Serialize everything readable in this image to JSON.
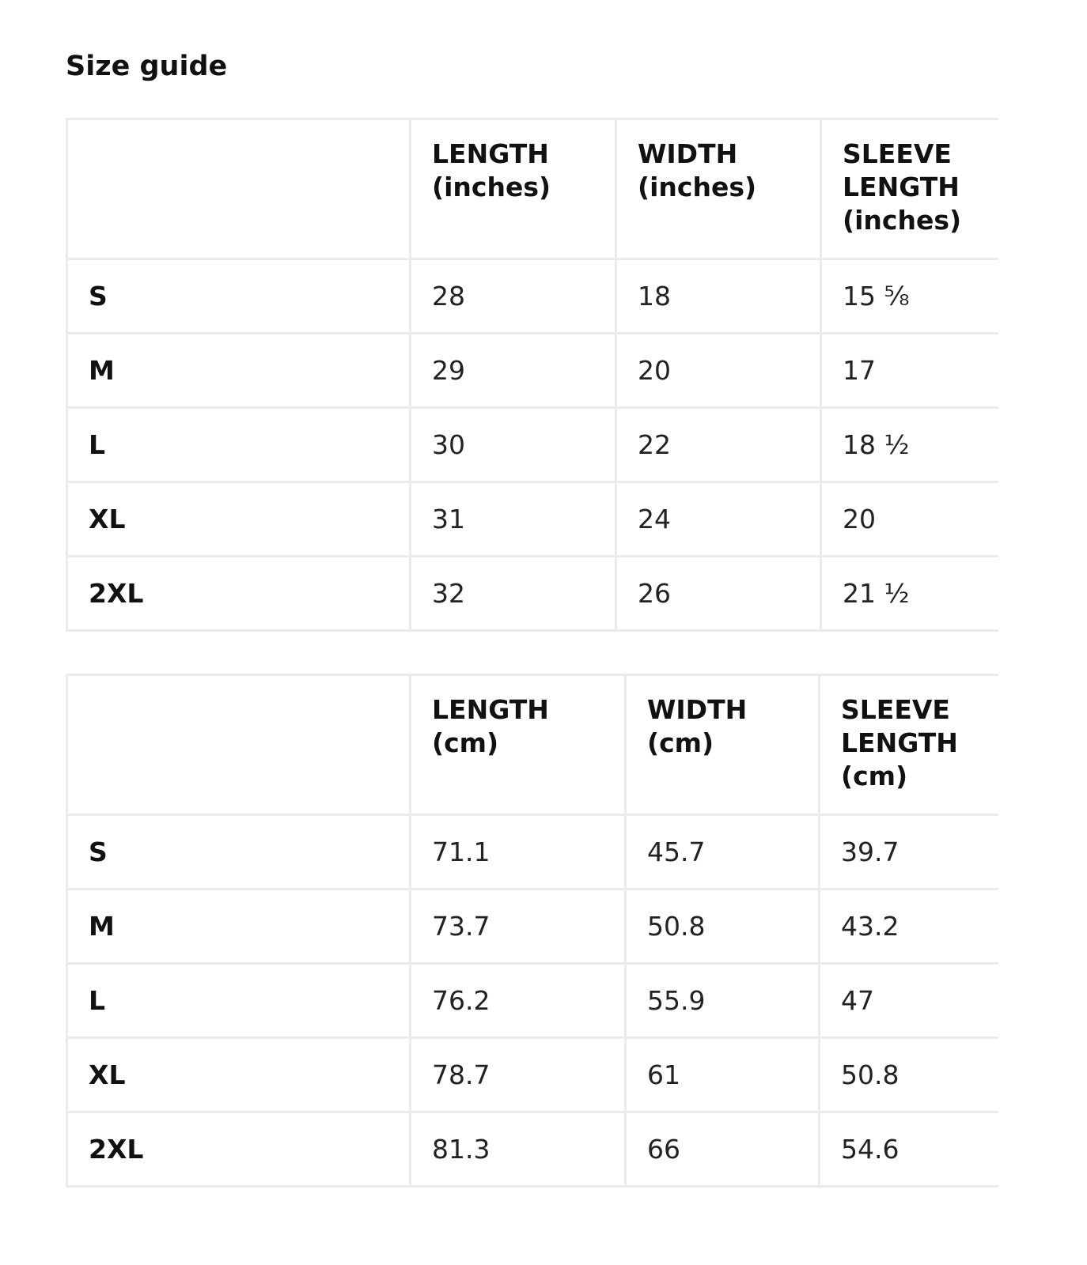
{
  "title": "Size guide",
  "inches_table": {
    "headers": [
      "",
      "LENGTH (inches)",
      "WIDTH (inches)",
      "SLEEVE LENGTH (inches)"
    ],
    "rows": [
      {
        "size": "S",
        "length": "28",
        "width": "18",
        "sleeve": "15 ⅝"
      },
      {
        "size": "M",
        "length": "29",
        "width": "20",
        "sleeve": "17"
      },
      {
        "size": "L",
        "length": "30",
        "width": "22",
        "sleeve": "18 ½"
      },
      {
        "size": "XL",
        "length": "31",
        "width": "24",
        "sleeve": "20"
      },
      {
        "size": "2XL",
        "length": "32",
        "width": "26",
        "sleeve": "21 ½"
      }
    ]
  },
  "cm_table": {
    "headers": [
      "",
      "LENGTH (cm)",
      "WIDTH (cm)",
      "SLEEVE LENGTH (cm)"
    ],
    "rows": [
      {
        "size": "S",
        "length": "71.1",
        "width": "45.7",
        "sleeve": "39.7"
      },
      {
        "size": "M",
        "length": "73.7",
        "width": "50.8",
        "sleeve": "43.2"
      },
      {
        "size": "L",
        "length": "76.2",
        "width": "55.9",
        "sleeve": "47"
      },
      {
        "size": "XL",
        "length": "78.7",
        "width": "61",
        "sleeve": "50.8"
      },
      {
        "size": "2XL",
        "length": "81.3",
        "width": "66",
        "sleeve": "54.6"
      }
    ]
  }
}
